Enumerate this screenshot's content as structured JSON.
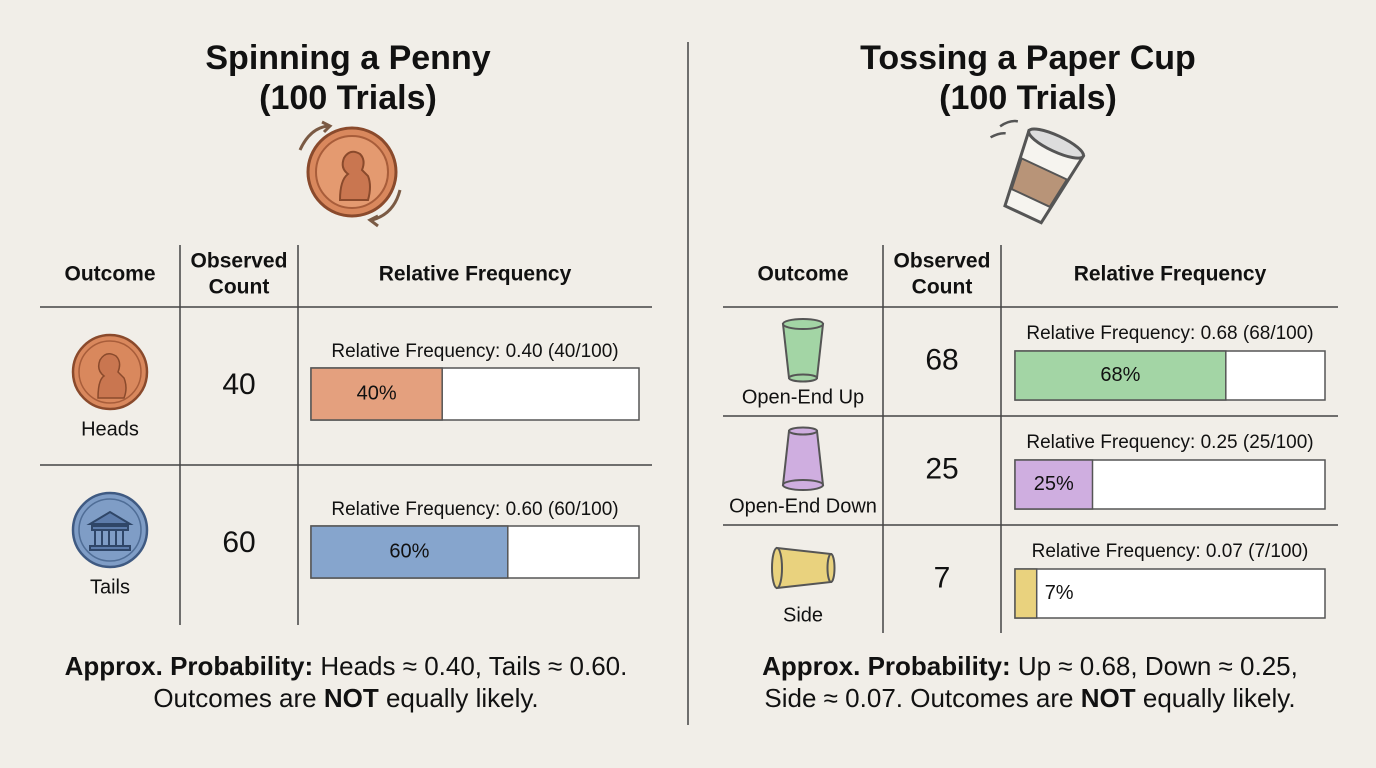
{
  "panels": [
    {
      "title": [
        "Spinning a Penny",
        "(100 Trials)"
      ],
      "table": {
        "headers": {
          "outcome": "Outcome",
          "count": [
            "Observed",
            "Count"
          ],
          "frequency": "Relative Frequency"
        },
        "rows": [
          {
            "outcome": "Heads",
            "count": 40,
            "frequency_text": "Relative Frequency: 0.40 (40/100)",
            "bar_label": "40%",
            "color": "#e4a07e"
          },
          {
            "outcome": "Tails",
            "count": 60,
            "frequency_text": "Relative Frequency: 0.60 (60/100)",
            "bar_label": "60%",
            "color": "#86a5cd"
          }
        ]
      },
      "conclusion": [
        [
          {
            "text": "Approx. Probability:",
            "bold": true
          },
          {
            "text": " Heads ≈ 0.40, Tails ≈ 0.60."
          }
        ],
        [
          {
            "text": "Outcomes are "
          },
          {
            "text": "NOT",
            "bold": true
          },
          {
            "text": " equally likely."
          }
        ]
      ]
    },
    {
      "title": [
        "Tossing a Paper Cup",
        "(100 Trials)"
      ],
      "table": {
        "headers": {
          "outcome": "Outcome",
          "count": [
            "Observed",
            "Count"
          ],
          "frequency": "Relative Frequency"
        },
        "rows": [
          {
            "outcome": "Open-End Up",
            "count": 68,
            "frequency_text": "Relative Frequency: 0.68 (68/100)",
            "bar_label": "68%",
            "color": "#a3d5a5"
          },
          {
            "outcome": "Open-End Down",
            "count": 25,
            "frequency_text": "Relative Frequency: 0.25 (25/100)",
            "bar_label": "25%",
            "color": "#cfaee0"
          },
          {
            "outcome": "Side",
            "count": 7,
            "frequency_text": "Relative Frequency: 0.07 (7/100)",
            "bar_label": "7%",
            "color": "#e9d27e"
          }
        ]
      },
      "conclusion": [
        [
          {
            "text": "Approx. Probability:",
            "bold": true
          },
          {
            "text": " Up ≈ 0.68, Down ≈ 0.25,"
          }
        ],
        [
          {
            "text": "Side ≈ 0.07. Outcomes are "
          },
          {
            "text": "NOT",
            "bold": true
          },
          {
            "text": " equally likely."
          }
        ]
      ]
    }
  ]
}
